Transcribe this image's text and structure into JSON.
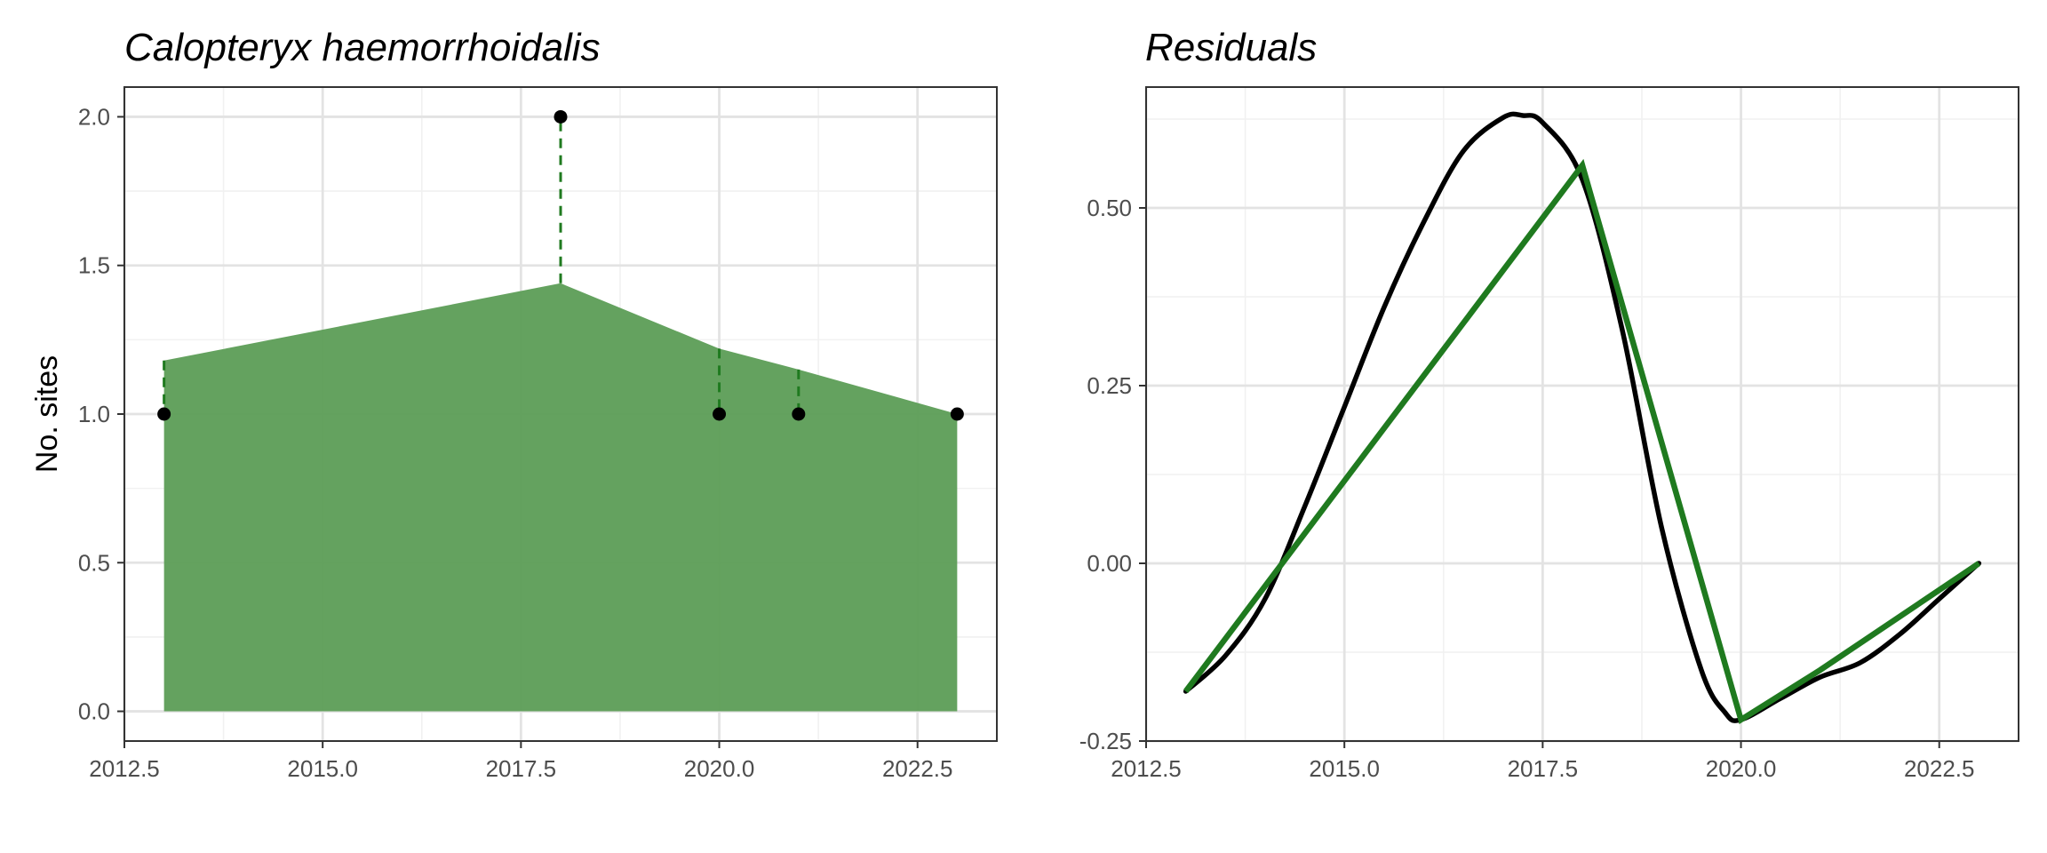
{
  "colors": {
    "fill": "#5f9f5a",
    "green_line": "#1f7a1f",
    "black": "#000000",
    "grid_major": "#e3e3e3",
    "grid_minor": "#f1f1f1",
    "border": "#333333"
  },
  "chart_data": [
    {
      "type": "area",
      "title": "Calopteryx haemorrhoidalis",
      "xlabel": "",
      "ylabel": "No. sites",
      "xlim": [
        2012.5,
        2023.5
      ],
      "ylim": [
        -0.1,
        2.1
      ],
      "xticks": [
        2012.5,
        2015.0,
        2017.5,
        2020.0,
        2022.5
      ],
      "xtick_labels": [
        "2012.5",
        "2015.0",
        "2017.5",
        "2020.0",
        "2022.5"
      ],
      "yticks": [
        0.0,
        0.5,
        1.0,
        1.5,
        2.0
      ],
      "ytick_labels": [
        "0.0",
        "0.5",
        "1.0",
        "1.5",
        "2.0"
      ],
      "grid": true,
      "series": [
        {
          "kind": "area",
          "x": [
            2013,
            2018,
            2020,
            2021,
            2023
          ],
          "y": [
            1.18,
            1.44,
            1.22,
            1.15,
            1.0
          ]
        },
        {
          "kind": "points",
          "x": [
            2013,
            2018,
            2020,
            2021,
            2023
          ],
          "y": [
            1,
            2,
            1,
            1,
            1
          ]
        }
      ]
    },
    {
      "type": "line",
      "title": "Residuals",
      "xlabel": "",
      "ylabel": "",
      "xlim": [
        2012.5,
        2023.5
      ],
      "ylim": [
        -0.25,
        0.67
      ],
      "xticks": [
        2012.5,
        2015.0,
        2017.5,
        2020.0,
        2022.5
      ],
      "xtick_labels": [
        "2012.5",
        "2015.0",
        "2017.5",
        "2020.0",
        "2022.5"
      ],
      "yticks": [
        -0.25,
        0.0,
        0.25,
        0.5
      ],
      "ytick_labels": [
        "-0.25",
        "0.00",
        "0.25",
        "0.50"
      ],
      "grid": true,
      "series": [
        {
          "kind": "smooth",
          "x": [
            2013.0,
            2013.5,
            2014.0,
            2014.5,
            2015.0,
            2015.5,
            2016.0,
            2016.5,
            2017.0,
            2017.25,
            2017.5,
            2018.0,
            2018.5,
            2019.0,
            2019.5,
            2019.8,
            2020.0,
            2020.5,
            2021.0,
            2021.5,
            2022.0,
            2022.5,
            2023.0
          ],
          "y": [
            -0.18,
            -0.13,
            -0.05,
            0.08,
            0.22,
            0.36,
            0.48,
            0.58,
            0.627,
            0.63,
            0.62,
            0.54,
            0.33,
            0.05,
            -0.15,
            -0.21,
            -0.22,
            -0.19,
            -0.16,
            -0.14,
            -0.1,
            -0.05,
            0.0
          ]
        },
        {
          "kind": "line",
          "x": [
            2013,
            2018,
            2020,
            2021,
            2023
          ],
          "y": [
            -0.18,
            0.56,
            -0.22,
            -0.15,
            0.0
          ]
        }
      ]
    }
  ]
}
